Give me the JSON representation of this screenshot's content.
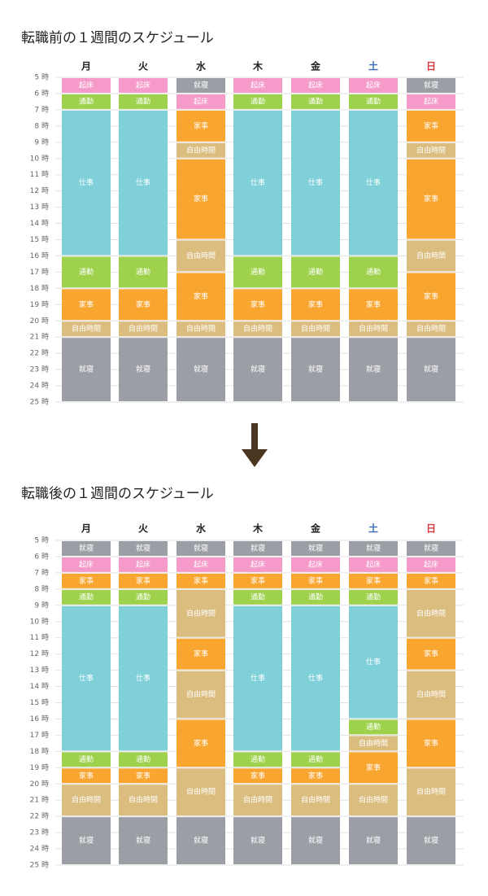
{
  "chart_data": [
    {
      "type": "schedule",
      "title": "転職前の１週間のスケジュール",
      "categories": [
        "月",
        "火",
        "水",
        "木",
        "金",
        "土",
        "日"
      ],
      "category_colors": [
        "#222222",
        "#222222",
        "#222222",
        "#222222",
        "#222222",
        "#3a6db5",
        "#d9383a"
      ],
      "colors": {
        "起床": "#f59ac9",
        "通勤": "#9ed14c",
        "仕事": "#7fd0d9",
        "家事": "#f9a631",
        "自由時間": "#dbbd80",
        "就寝": "#9c9ea6"
      },
      "ylim": [
        5,
        25
      ],
      "yticks": [
        {
          "value": 5,
          "label": "5 時"
        },
        {
          "value": 6,
          "label": "6 時"
        },
        {
          "value": 7,
          "label": "7 時"
        },
        {
          "value": 8,
          "label": "8 時"
        },
        {
          "value": 9,
          "label": "9 時"
        },
        {
          "value": 10,
          "label": "10 時"
        },
        {
          "value": 11,
          "label": "11 時"
        },
        {
          "value": 12,
          "label": "12 時"
        },
        {
          "value": 13,
          "label": "13 時"
        },
        {
          "value": 14,
          "label": "14 時"
        },
        {
          "value": 15,
          "label": "15 時"
        },
        {
          "value": 16,
          "label": "16 時"
        },
        {
          "value": 17,
          "label": "17 時"
        },
        {
          "value": 18,
          "label": "18 時"
        },
        {
          "value": 19,
          "label": "19 時"
        },
        {
          "value": 20,
          "label": "20 時"
        },
        {
          "value": 21,
          "label": "21 時"
        },
        {
          "value": 22,
          "label": "22 時"
        },
        {
          "value": 23,
          "label": "23 時"
        },
        {
          "value": 24,
          "label": "24 時"
        },
        {
          "value": 25,
          "label": "25 時"
        }
      ],
      "columns": [
        [
          {
            "name": "起床",
            "start": 5,
            "end": 6
          },
          {
            "name": "通勤",
            "start": 6,
            "end": 7
          },
          {
            "name": "仕事",
            "start": 7,
            "end": 16
          },
          {
            "name": "通勤",
            "start": 16,
            "end": 18
          },
          {
            "name": "家事",
            "start": 18,
            "end": 20
          },
          {
            "name": "自由時間",
            "start": 20,
            "end": 21
          },
          {
            "name": "就寝",
            "start": 21,
            "end": 25
          }
        ],
        [
          {
            "name": "起床",
            "start": 5,
            "end": 6
          },
          {
            "name": "通勤",
            "start": 6,
            "end": 7
          },
          {
            "name": "仕事",
            "start": 7,
            "end": 16
          },
          {
            "name": "通勤",
            "start": 16,
            "end": 18
          },
          {
            "name": "家事",
            "start": 18,
            "end": 20
          },
          {
            "name": "自由時間",
            "start": 20,
            "end": 21
          },
          {
            "name": "就寝",
            "start": 21,
            "end": 25
          }
        ],
        [
          {
            "name": "就寝",
            "start": 5,
            "end": 6
          },
          {
            "name": "起床",
            "start": 6,
            "end": 7
          },
          {
            "name": "家事",
            "start": 7,
            "end": 9
          },
          {
            "name": "自由時間",
            "start": 9,
            "end": 10
          },
          {
            "name": "家事",
            "start": 10,
            "end": 15
          },
          {
            "name": "自由時間",
            "start": 15,
            "end": 17
          },
          {
            "name": "家事",
            "start": 17,
            "end": 20
          },
          {
            "name": "自由時間",
            "start": 20,
            "end": 21
          },
          {
            "name": "就寝",
            "start": 21,
            "end": 25
          }
        ],
        [
          {
            "name": "起床",
            "start": 5,
            "end": 6
          },
          {
            "name": "通勤",
            "start": 6,
            "end": 7
          },
          {
            "name": "仕事",
            "start": 7,
            "end": 16
          },
          {
            "name": "通勤",
            "start": 16,
            "end": 18
          },
          {
            "name": "家事",
            "start": 18,
            "end": 20
          },
          {
            "name": "自由時間",
            "start": 20,
            "end": 21
          },
          {
            "name": "就寝",
            "start": 21,
            "end": 25
          }
        ],
        [
          {
            "name": "起床",
            "start": 5,
            "end": 6
          },
          {
            "name": "通勤",
            "start": 6,
            "end": 7
          },
          {
            "name": "仕事",
            "start": 7,
            "end": 16
          },
          {
            "name": "通勤",
            "start": 16,
            "end": 18
          },
          {
            "name": "家事",
            "start": 18,
            "end": 20
          },
          {
            "name": "自由時間",
            "start": 20,
            "end": 21
          },
          {
            "name": "就寝",
            "start": 21,
            "end": 25
          }
        ],
        [
          {
            "name": "起床",
            "start": 5,
            "end": 6
          },
          {
            "name": "通勤",
            "start": 6,
            "end": 7
          },
          {
            "name": "仕事",
            "start": 7,
            "end": 16
          },
          {
            "name": "通勤",
            "start": 16,
            "end": 18
          },
          {
            "name": "家事",
            "start": 18,
            "end": 20
          },
          {
            "name": "自由時間",
            "start": 20,
            "end": 21
          },
          {
            "name": "就寝",
            "start": 21,
            "end": 25
          }
        ],
        [
          {
            "name": "就寝",
            "start": 5,
            "end": 6
          },
          {
            "name": "起床",
            "start": 6,
            "end": 7
          },
          {
            "name": "家事",
            "start": 7,
            "end": 9
          },
          {
            "name": "自由時間",
            "start": 9,
            "end": 10
          },
          {
            "name": "家事",
            "start": 10,
            "end": 15
          },
          {
            "name": "自由時間",
            "start": 15,
            "end": 17
          },
          {
            "name": "家事",
            "start": 17,
            "end": 20
          },
          {
            "name": "自由時間",
            "start": 20,
            "end": 21
          },
          {
            "name": "就寝",
            "start": 21,
            "end": 25
          }
        ]
      ]
    },
    {
      "type": "schedule",
      "title": "転職後の１週間のスケジュール",
      "categories": [
        "月",
        "火",
        "水",
        "木",
        "金",
        "土",
        "日"
      ],
      "category_colors": [
        "#222222",
        "#222222",
        "#222222",
        "#222222",
        "#222222",
        "#3a6db5",
        "#d9383a"
      ],
      "colors": {
        "起床": "#f59ac9",
        "通勤": "#9ed14c",
        "仕事": "#7fd0d9",
        "家事": "#f9a631",
        "自由時間": "#dbbd80",
        "就寝": "#9c9ea6"
      },
      "ylim": [
        5,
        25
      ],
      "yticks": [
        {
          "value": 5,
          "label": "5 時"
        },
        {
          "value": 6,
          "label": "6 時"
        },
        {
          "value": 7,
          "label": "7 時"
        },
        {
          "value": 8,
          "label": "8 時"
        },
        {
          "value": 9,
          "label": "9 時"
        },
        {
          "value": 10,
          "label": "10 時"
        },
        {
          "value": 11,
          "label": "11 時"
        },
        {
          "value": 12,
          "label": "12 時"
        },
        {
          "value": 13,
          "label": "13 時"
        },
        {
          "value": 14,
          "label": "14 時"
        },
        {
          "value": 15,
          "label": "15 時"
        },
        {
          "value": 16,
          "label": "16 時"
        },
        {
          "value": 17,
          "label": "17 時"
        },
        {
          "value": 18,
          "label": "18 時"
        },
        {
          "value": 19,
          "label": "19 時"
        },
        {
          "value": 20,
          "label": "20 時"
        },
        {
          "value": 21,
          "label": "21 時"
        },
        {
          "value": 22,
          "label": "22 時"
        },
        {
          "value": 23,
          "label": "23 時"
        },
        {
          "value": 24,
          "label": "24 時"
        },
        {
          "value": 25,
          "label": "25 時"
        }
      ],
      "columns": [
        [
          {
            "name": "就寝",
            "start": 5,
            "end": 6
          },
          {
            "name": "起床",
            "start": 6,
            "end": 7
          },
          {
            "name": "家事",
            "start": 7,
            "end": 8
          },
          {
            "name": "通勤",
            "start": 8,
            "end": 9
          },
          {
            "name": "仕事",
            "start": 9,
            "end": 18
          },
          {
            "name": "通勤",
            "start": 18,
            "end": 19
          },
          {
            "name": "家事",
            "start": 19,
            "end": 20
          },
          {
            "name": "自由時間",
            "start": 20,
            "end": 22
          },
          {
            "name": "就寝",
            "start": 22,
            "end": 25
          }
        ],
        [
          {
            "name": "就寝",
            "start": 5,
            "end": 6
          },
          {
            "name": "起床",
            "start": 6,
            "end": 7
          },
          {
            "name": "家事",
            "start": 7,
            "end": 8
          },
          {
            "name": "通勤",
            "start": 8,
            "end": 9
          },
          {
            "name": "仕事",
            "start": 9,
            "end": 18
          },
          {
            "name": "通勤",
            "start": 18,
            "end": 19
          },
          {
            "name": "家事",
            "start": 19,
            "end": 20
          },
          {
            "name": "自由時間",
            "start": 20,
            "end": 22
          },
          {
            "name": "就寝",
            "start": 22,
            "end": 25
          }
        ],
        [
          {
            "name": "就寝",
            "start": 5,
            "end": 6
          },
          {
            "name": "起床",
            "start": 6,
            "end": 7
          },
          {
            "name": "家事",
            "start": 7,
            "end": 8
          },
          {
            "name": "自由時間",
            "start": 8,
            "end": 11
          },
          {
            "name": "家事",
            "start": 11,
            "end": 13
          },
          {
            "name": "自由時間",
            "start": 13,
            "end": 16
          },
          {
            "name": "家事",
            "start": 16,
            "end": 19
          },
          {
            "name": "自由時間",
            "start": 19,
            "end": 22
          },
          {
            "name": "就寝",
            "start": 22,
            "end": 25
          }
        ],
        [
          {
            "name": "就寝",
            "start": 5,
            "end": 6
          },
          {
            "name": "起床",
            "start": 6,
            "end": 7
          },
          {
            "name": "家事",
            "start": 7,
            "end": 8
          },
          {
            "name": "通勤",
            "start": 8,
            "end": 9
          },
          {
            "name": "仕事",
            "start": 9,
            "end": 18
          },
          {
            "name": "通勤",
            "start": 18,
            "end": 19
          },
          {
            "name": "家事",
            "start": 19,
            "end": 20
          },
          {
            "name": "自由時間",
            "start": 20,
            "end": 22
          },
          {
            "name": "就寝",
            "start": 22,
            "end": 25
          }
        ],
        [
          {
            "name": "就寝",
            "start": 5,
            "end": 6
          },
          {
            "name": "起床",
            "start": 6,
            "end": 7
          },
          {
            "name": "家事",
            "start": 7,
            "end": 8
          },
          {
            "name": "通勤",
            "start": 8,
            "end": 9
          },
          {
            "name": "仕事",
            "start": 9,
            "end": 18
          },
          {
            "name": "通勤",
            "start": 18,
            "end": 19
          },
          {
            "name": "家事",
            "start": 19,
            "end": 20
          },
          {
            "name": "自由時間",
            "start": 20,
            "end": 22
          },
          {
            "name": "就寝",
            "start": 22,
            "end": 25
          }
        ],
        [
          {
            "name": "就寝",
            "start": 5,
            "end": 6
          },
          {
            "name": "起床",
            "start": 6,
            "end": 7
          },
          {
            "name": "家事",
            "start": 7,
            "end": 8
          },
          {
            "name": "通勤",
            "start": 8,
            "end": 9
          },
          {
            "name": "仕事",
            "start": 9,
            "end": 16
          },
          {
            "name": "通勤",
            "start": 16,
            "end": 17
          },
          {
            "name": "自由時間",
            "start": 17,
            "end": 18
          },
          {
            "name": "家事",
            "start": 18,
            "end": 20
          },
          {
            "name": "自由時間",
            "start": 20,
            "end": 22
          },
          {
            "name": "就寝",
            "start": 22,
            "end": 25
          }
        ],
        [
          {
            "name": "就寝",
            "start": 5,
            "end": 6
          },
          {
            "name": "起床",
            "start": 6,
            "end": 7
          },
          {
            "name": "家事",
            "start": 7,
            "end": 8
          },
          {
            "name": "自由時間",
            "start": 8,
            "end": 11
          },
          {
            "name": "家事",
            "start": 11,
            "end": 13
          },
          {
            "name": "自由時間",
            "start": 13,
            "end": 16
          },
          {
            "name": "家事",
            "start": 16,
            "end": 19
          },
          {
            "name": "自由時間",
            "start": 19,
            "end": 22
          },
          {
            "name": "就寝",
            "start": 22,
            "end": 25
          }
        ]
      ]
    }
  ]
}
